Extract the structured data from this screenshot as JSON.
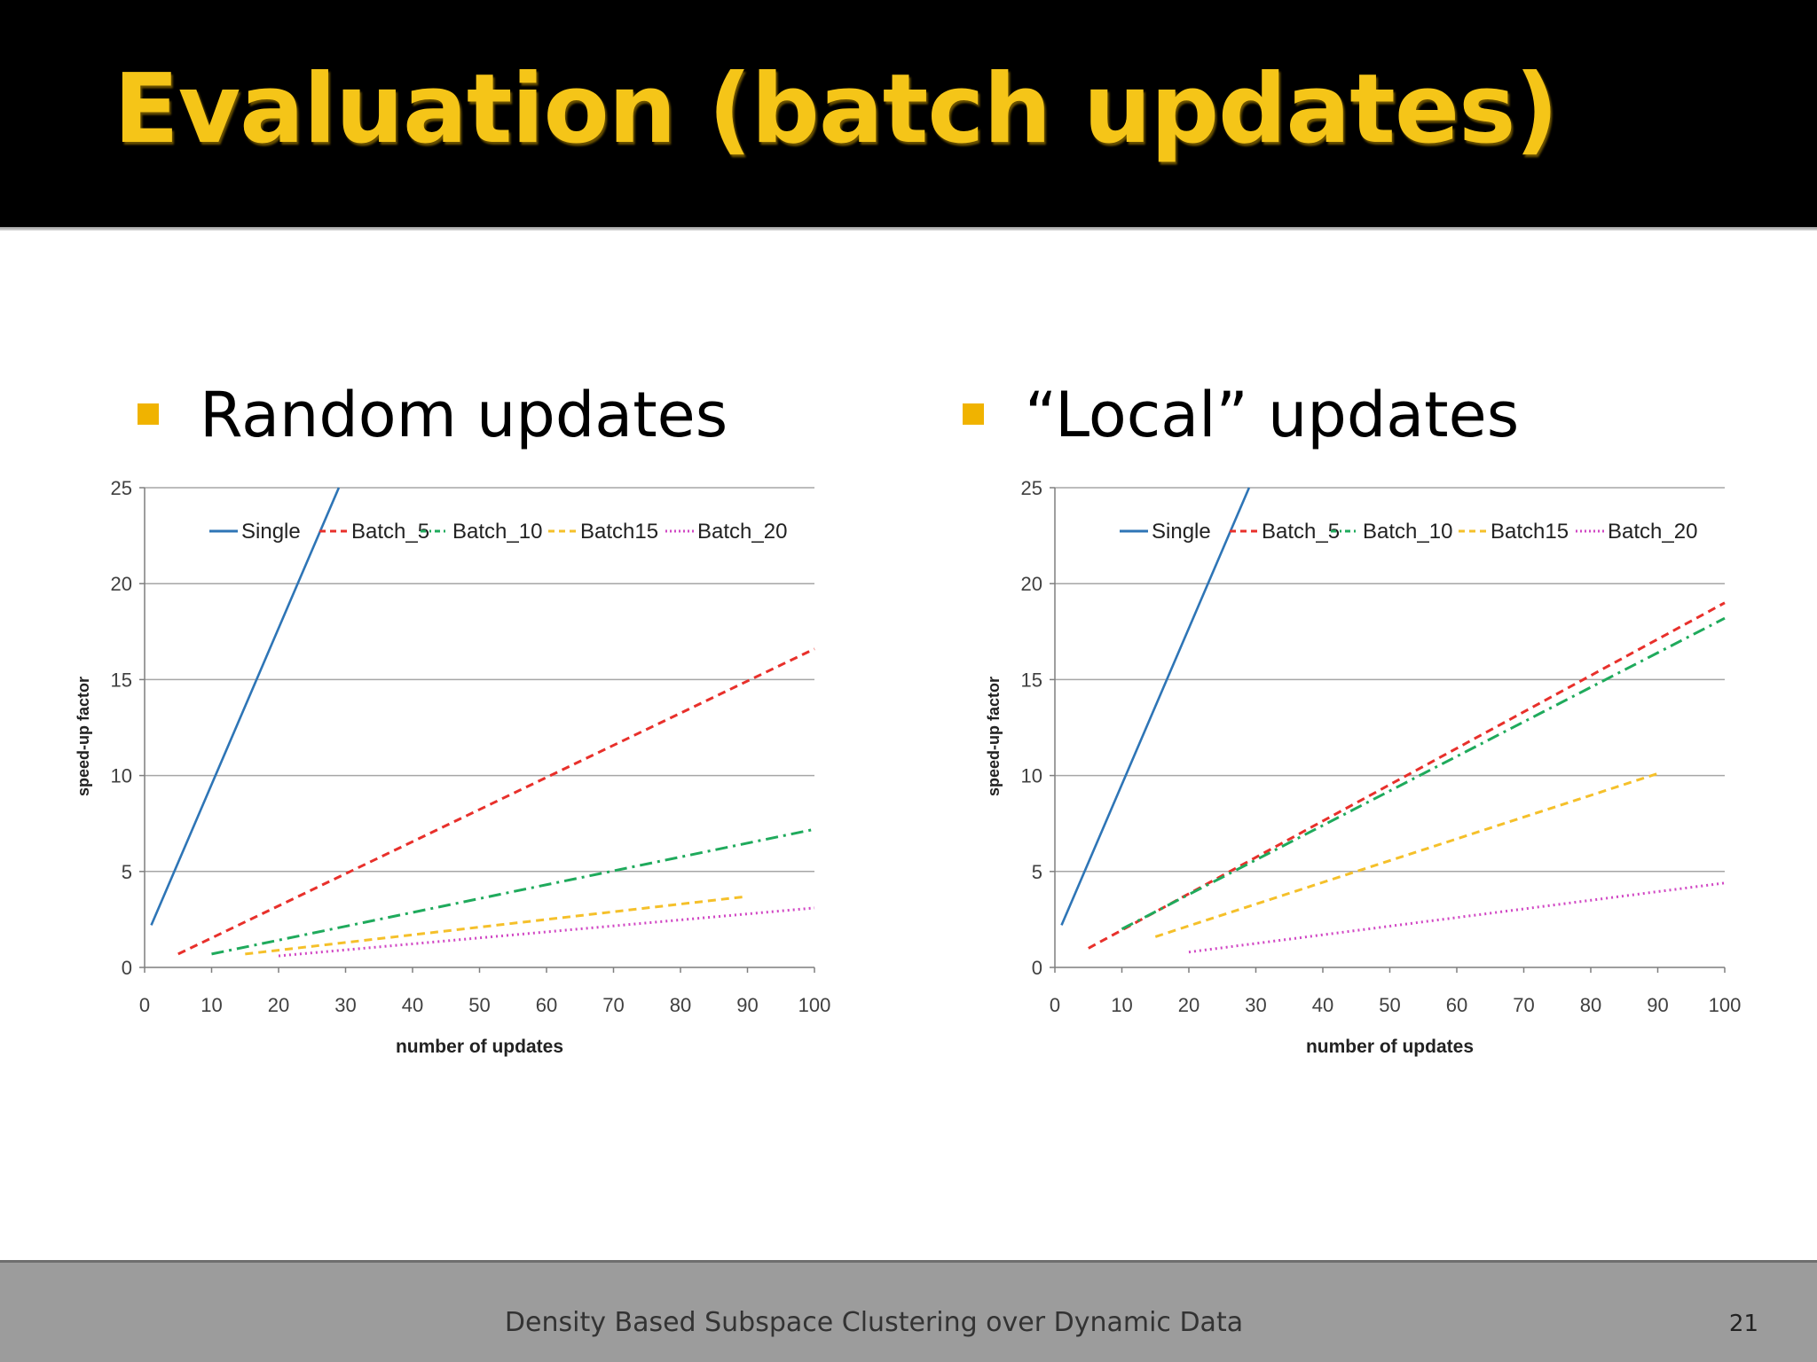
{
  "slide": {
    "title": "Evaluation (batch updates)",
    "footer": "Density Based Subspace Clustering over Dynamic Data",
    "page_number": "21",
    "bullets": [
      "Random updates",
      "“Local” updates"
    ]
  },
  "colors": {
    "title": "#f5c518",
    "bullet_marker": "#f0b300",
    "Single": "#2e75b6",
    "Batch_5": "#e8302b",
    "Batch_10": "#1faa5c",
    "Batch15": "#f5c02a",
    "Batch_20": "#d147c4"
  },
  "chart_data": [
    {
      "type": "line",
      "panel": "Random updates",
      "xlabel": "number of updates",
      "ylabel": "speed-up  factor",
      "xlim": [
        0,
        100
      ],
      "ylim": [
        0,
        25
      ],
      "xticks": [
        0,
        10,
        20,
        30,
        40,
        50,
        60,
        70,
        80,
        90,
        100
      ],
      "yticks": [
        0,
        5,
        10,
        15,
        20,
        25
      ],
      "grid": "horizontal",
      "legend": "top",
      "series": [
        {
          "name": "Single",
          "style": "solid",
          "x": [
            1,
            29
          ],
          "y": [
            2.2,
            25
          ]
        },
        {
          "name": "Batch_5",
          "style": "dashed",
          "x": [
            5,
            100
          ],
          "y": [
            0.7,
            16.6
          ]
        },
        {
          "name": "Batch_10",
          "style": "dashdot",
          "x": [
            10,
            100
          ],
          "y": [
            0.7,
            7.2
          ]
        },
        {
          "name": "Batch15",
          "style": "dashed",
          "x": [
            15,
            90
          ],
          "y": [
            0.7,
            3.7
          ]
        },
        {
          "name": "Batch_20",
          "style": "dotted",
          "x": [
            20,
            100
          ],
          "y": [
            0.6,
            3.1
          ]
        }
      ]
    },
    {
      "type": "line",
      "panel": "“Local” updates",
      "xlabel": "number of updates",
      "ylabel": "speed-up  factor",
      "xlim": [
        0,
        100
      ],
      "ylim": [
        0,
        25
      ],
      "xticks": [
        0,
        10,
        20,
        30,
        40,
        50,
        60,
        70,
        80,
        90,
        100
      ],
      "yticks": [
        0,
        5,
        10,
        15,
        20,
        25
      ],
      "grid": "horizontal",
      "legend": "top",
      "series": [
        {
          "name": "Single",
          "style": "solid",
          "x": [
            1,
            29
          ],
          "y": [
            2.2,
            25
          ]
        },
        {
          "name": "Batch_5",
          "style": "dashed",
          "x": [
            5,
            100
          ],
          "y": [
            1.0,
            19.0
          ]
        },
        {
          "name": "Batch_10",
          "style": "dashdot",
          "x": [
            10,
            100
          ],
          "y": [
            2.0,
            18.2
          ]
        },
        {
          "name": "Batch15",
          "style": "dashed",
          "x": [
            15,
            90
          ],
          "y": [
            1.6,
            10.1
          ]
        },
        {
          "name": "Batch_20",
          "style": "dotted",
          "x": [
            20,
            100
          ],
          "y": [
            0.8,
            4.4
          ]
        }
      ]
    }
  ]
}
